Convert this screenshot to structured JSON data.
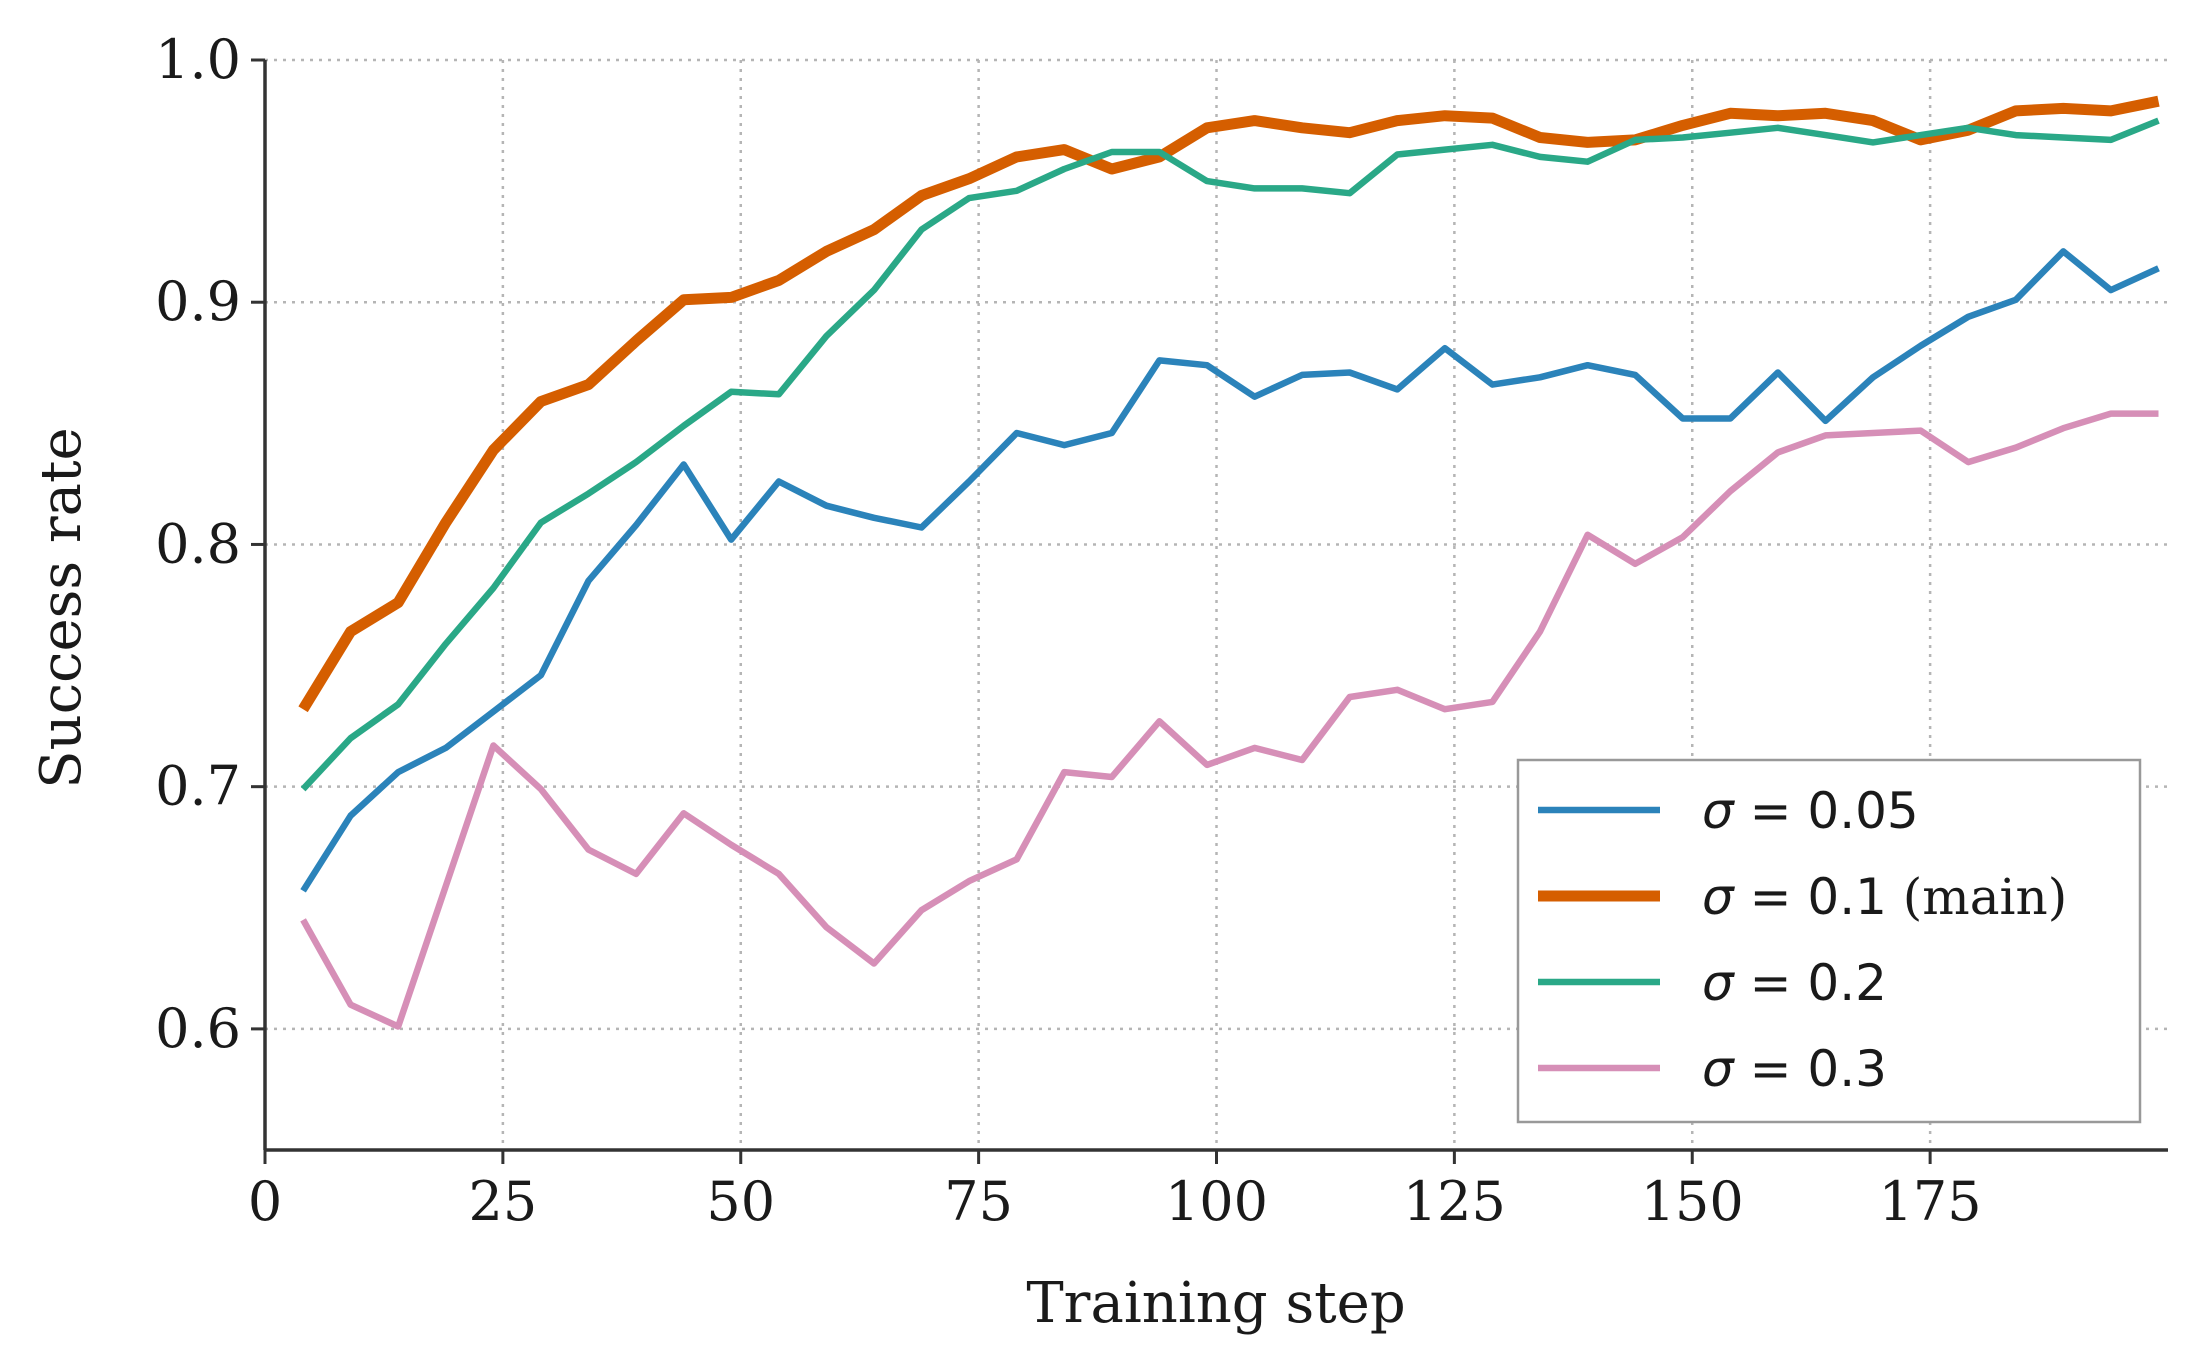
{
  "chart_data": {
    "type": "line",
    "xlabel": "Training step",
    "ylabel": "Success rate",
    "xlim": [
      0,
      200
    ],
    "ylim": [
      0.55,
      1.0
    ],
    "xticks": [
      "0",
      "25",
      "50",
      "75",
      "100",
      "125",
      "150",
      "175"
    ],
    "yticks": [
      "0.6",
      "0.7",
      "0.8",
      "0.9",
      "1.0"
    ],
    "grid": true,
    "legend_position": "lower right",
    "x": [
      4,
      9,
      14,
      19,
      24,
      29,
      34,
      39,
      44,
      49,
      54,
      59,
      64,
      69,
      74,
      79,
      84,
      89,
      94,
      99,
      104,
      109,
      114,
      119,
      124,
      129,
      134,
      139,
      144,
      149,
      154,
      159,
      164,
      169,
      174,
      179,
      184,
      189,
      194,
      199
    ],
    "series": [
      {
        "name": "σ = 0.05",
        "symbol": "σ",
        "value_text": " = 0.05",
        "suffix": "",
        "color": "#2b83ba",
        "values": [
          0.657,
          0.688,
          0.706,
          0.716,
          0.731,
          0.746,
          0.785,
          0.808,
          0.833,
          0.802,
          0.826,
          0.816,
          0.811,
          0.807,
          0.826,
          0.846,
          0.841,
          0.846,
          0.876,
          0.874,
          0.861,
          0.87,
          0.871,
          0.864,
          0.881,
          0.866,
          0.869,
          0.874,
          0.87,
          0.852,
          0.852,
          0.871,
          0.851,
          0.869,
          0.882,
          0.894,
          0.901,
          0.921,
          0.905,
          0.914
        ]
      },
      {
        "name": "σ = 0.1 (main)",
        "symbol": "σ",
        "value_text": " = 0.1",
        "suffix": " (main)",
        "color": "#d55e00",
        "values": [
          0.732,
          0.764,
          0.776,
          0.809,
          0.839,
          0.859,
          0.866,
          0.884,
          0.901,
          0.902,
          0.909,
          0.921,
          0.93,
          0.944,
          0.951,
          0.96,
          0.963,
          0.955,
          0.96,
          0.972,
          0.975,
          0.972,
          0.97,
          0.975,
          0.977,
          0.976,
          0.968,
          0.966,
          0.967,
          0.973,
          0.978,
          0.977,
          0.978,
          0.975,
          0.967,
          0.971,
          0.979,
          0.98,
          0.979,
          0.983
        ]
      },
      {
        "name": "σ = 0.2",
        "symbol": "σ",
        "value_text": " = 0.2",
        "suffix": "",
        "color": "#2aa887",
        "values": [
          0.699,
          0.72,
          0.734,
          0.759,
          0.782,
          0.809,
          0.821,
          0.834,
          0.849,
          0.863,
          0.862,
          0.886,
          0.905,
          0.93,
          0.943,
          0.946,
          0.955,
          0.962,
          0.962,
          0.95,
          0.947,
          0.947,
          0.945,
          0.961,
          0.963,
          0.965,
          0.96,
          0.958,
          0.967,
          0.968,
          0.97,
          0.972,
          0.969,
          0.966,
          0.969,
          0.972,
          0.969,
          0.968,
          0.967,
          0.975
        ]
      },
      {
        "name": "σ = 0.3",
        "symbol": "σ",
        "value_text": " = 0.3",
        "suffix": "",
        "color": "#d68fb7",
        "values": [
          0.645,
          0.61,
          0.601,
          0.659,
          0.717,
          0.699,
          0.674,
          0.664,
          0.689,
          0.676,
          0.664,
          0.642,
          0.627,
          0.649,
          0.661,
          0.67,
          0.706,
          0.704,
          0.727,
          0.709,
          0.716,
          0.711,
          0.737,
          0.74,
          0.732,
          0.735,
          0.764,
          0.804,
          0.792,
          0.803,
          0.822,
          0.838,
          0.845,
          0.846,
          0.847,
          0.834,
          0.84,
          0.848,
          0.854,
          0.854
        ]
      }
    ]
  }
}
